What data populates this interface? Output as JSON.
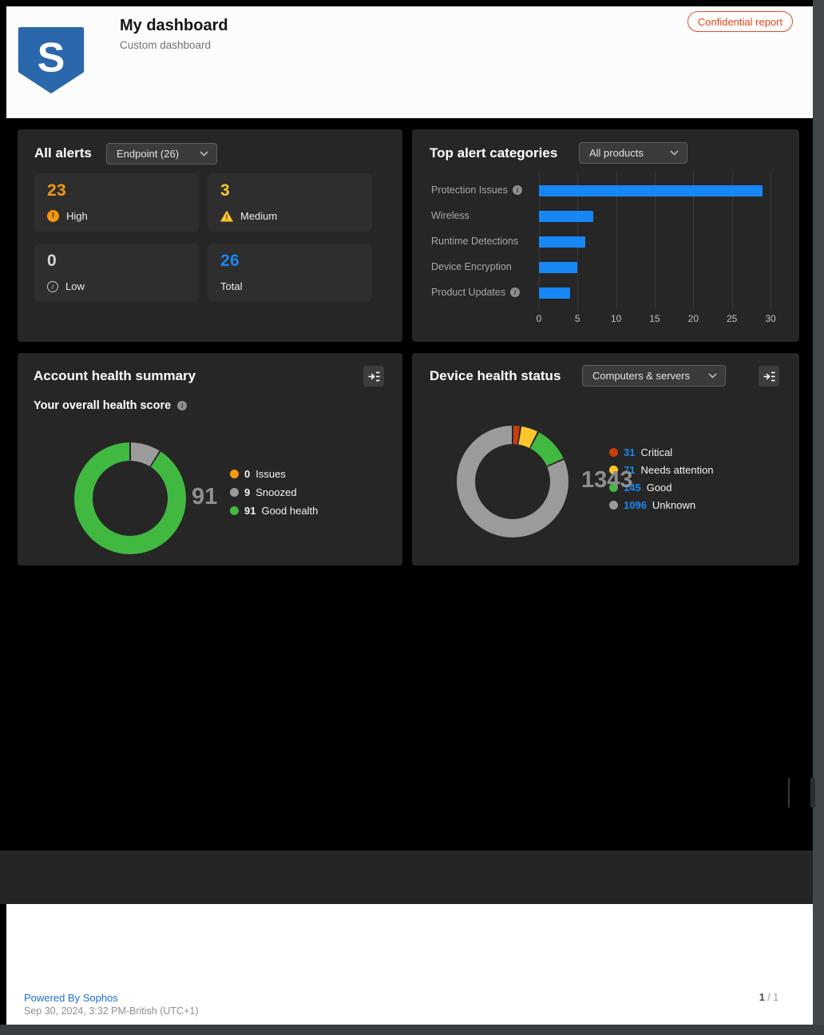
{
  "header": {
    "title": "My dashboard",
    "subtitle": "Custom dashboard",
    "logo_letter": "S",
    "confidential_label": "Confidential report"
  },
  "all_alerts": {
    "title": "All alerts",
    "dropdown_value": "Endpoint (26)",
    "cards": [
      {
        "value": "23",
        "label": "High",
        "value_color": "#f0990e",
        "icon": "exclamation-circle-icon",
        "icon_color": "#f0990e"
      },
      {
        "value": "3",
        "label": "Medium",
        "value_color": "#fdc62c",
        "icon": "warning-triangle-icon",
        "icon_color": "#fdc62c"
      },
      {
        "value": "0",
        "label": "Low",
        "value_color": "#d6d6d6",
        "icon": "info-circle-icon",
        "icon_color": "#c6c6c6"
      },
      {
        "value": "26",
        "label": "Total",
        "value_color": "#1a86f0",
        "icon": null,
        "icon_color": null
      }
    ]
  },
  "top_alert_categories": {
    "title": "Top alert categories",
    "dropdown_value": "All products",
    "chart_data": {
      "type": "bar",
      "orientation": "horizontal",
      "title": "Top alert categories",
      "categories": [
        "Protection Issues",
        "Wireless",
        "Runtime Detections",
        "Device Encryption",
        "Product Updates"
      ],
      "values": [
        29,
        7,
        6,
        5,
        4
      ],
      "info_icon_categories": [
        "Protection Issues",
        "Product Updates"
      ],
      "xlim": [
        0,
        30
      ],
      "xticks": [
        0,
        5,
        10,
        15,
        20,
        25,
        30
      ],
      "bar_color": "#1787f5",
      "grid": true,
      "xlabel": "",
      "ylabel": ""
    }
  },
  "account_health": {
    "title": "Account health summary",
    "subtitle": "Your overall health score",
    "score": "91",
    "chart_data": {
      "type": "pie",
      "donut": true,
      "center_label": "91",
      "legend_position": "right",
      "segments": [
        {
          "label": "Issues",
          "value": 0,
          "color": "#f59c0c"
        },
        {
          "label": "Snoozed",
          "value": 9,
          "color": "#9b9b9b"
        },
        {
          "label": "Good health",
          "value": 91,
          "color": "#41b941"
        }
      ]
    }
  },
  "device_health": {
    "title": "Device health status",
    "dropdown_value": "Computers & servers",
    "total": "1343",
    "chart_data": {
      "type": "pie",
      "donut": true,
      "center_label": "1343",
      "legend_position": "right",
      "legend_number_color": "#1a86f0",
      "segments": [
        {
          "label": "Critical",
          "value": 31,
          "color": "#c63d0e"
        },
        {
          "label": "Needs attention",
          "value": 71,
          "color": "#fdc62c"
        },
        {
          "label": "Good",
          "value": 145,
          "color": "#41b941"
        },
        {
          "label": "Unknown",
          "value": 1096,
          "color": "#9b9b9b"
        }
      ]
    }
  },
  "footer": {
    "powered_by": "Powered By Sophos",
    "timestamp": "Sep 30, 2024, 3:32 PM-British (UTC+1)",
    "page_current": "1",
    "page_total": "/ 1"
  }
}
